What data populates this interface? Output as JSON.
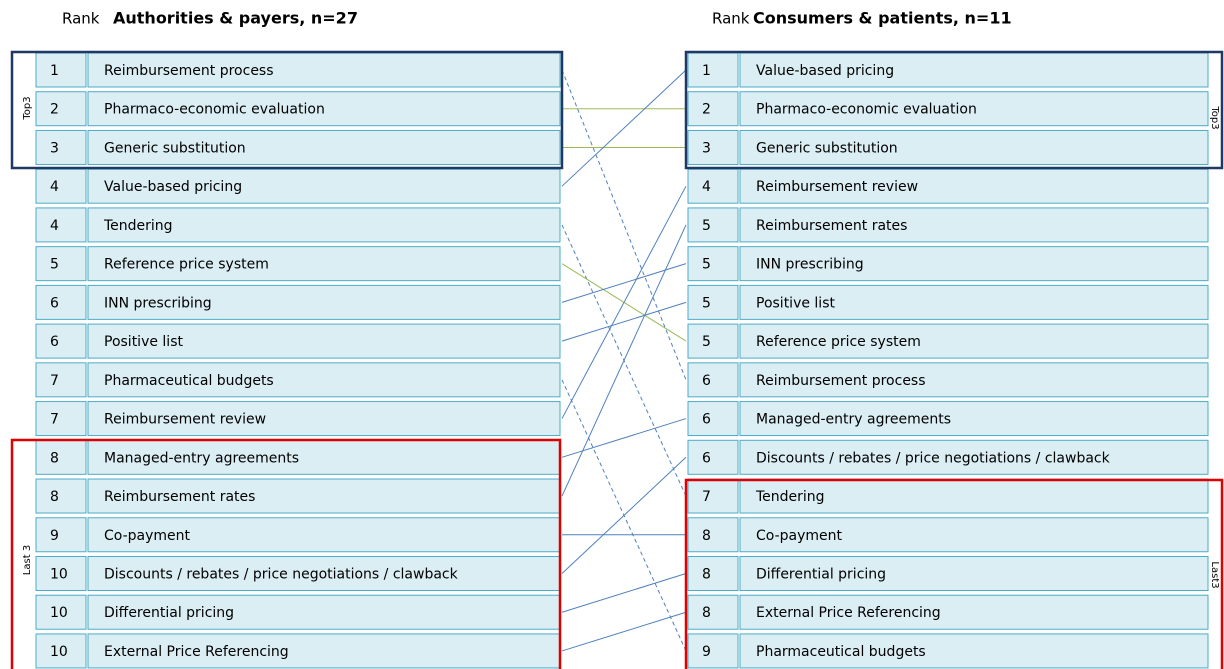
{
  "left": {
    "rank_label": "Rank",
    "title": "Authorities & payers, n=27",
    "top_label": "Top3",
    "last_label": "Last 3",
    "rows": [
      [
        "1",
        "Reimbursement process"
      ],
      [
        "2",
        "Pharmaco-economic evaluation"
      ],
      [
        "3",
        "Generic substitution"
      ],
      [
        "4",
        "Value-based pricing"
      ],
      [
        "4",
        "Tendering"
      ],
      [
        "5",
        "Reference price system"
      ],
      [
        "6",
        "INN prescribing"
      ],
      [
        "6",
        "Positive list"
      ],
      [
        "7",
        "Pharmaceutical budgets"
      ],
      [
        "7",
        "Reimbursement review"
      ],
      [
        "8",
        "Managed-entry agreements"
      ],
      [
        "8",
        "Reimbursement rates"
      ],
      [
        "9",
        "Co-payment"
      ],
      [
        "10",
        "Discounts / rebates / price negotiations / clawback"
      ],
      [
        "10",
        "Differential pricing"
      ],
      [
        "10",
        "External Price Referencing"
      ]
    ]
  },
  "right": {
    "rank_label": "Rank",
    "title": "Consumers & patients, n=11",
    "top_label": "Top3",
    "last_label": "Last3",
    "rows": [
      [
        "1",
        "Value-based pricing"
      ],
      [
        "2",
        "Pharmaco-economic evaluation"
      ],
      [
        "3",
        "Generic substitution"
      ],
      [
        "4",
        "Reimbursement review"
      ],
      [
        "5",
        "Reimbursement rates"
      ],
      [
        "5",
        "INN prescribing"
      ],
      [
        "5",
        "Positive list"
      ],
      [
        "5",
        "Reference price system"
      ],
      [
        "6",
        "Reimbursement process"
      ],
      [
        "6",
        "Managed-entry agreements"
      ],
      [
        "6",
        "Discounts / rebates / price negotiations / clawback"
      ],
      [
        "7",
        "Tendering"
      ],
      [
        "8",
        "Co-payment"
      ],
      [
        "8",
        "Differential pricing"
      ],
      [
        "8",
        "External Price Referencing"
      ],
      [
        "9",
        "Pharmaceutical budgets"
      ]
    ]
  }
}
